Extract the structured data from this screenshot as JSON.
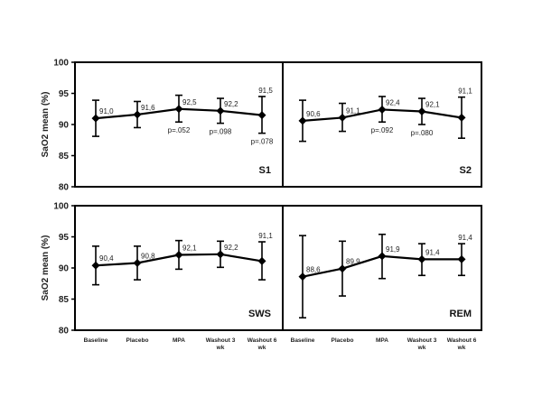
{
  "chart_data": [
    {
      "type": "line",
      "panel": "S1",
      "ylabel": "SaO2 mean (%)",
      "ylim": [
        80,
        100
      ],
      "yticks": [
        80,
        85,
        90,
        95,
        100
      ],
      "categories": [
        "Baseline",
        "Placebo",
        "MPA",
        "Washout 3 wk",
        "Washout 6 wk"
      ],
      "series": [
        {
          "values": [
            91.0,
            91.6,
            92.5,
            92.2,
            91.5
          ],
          "value_labels": [
            "91,0",
            "91,6",
            "92,5",
            "92,2",
            "91,5"
          ],
          "error_low": [
            88.1,
            89.5,
            90.4,
            90.2,
            88.6
          ],
          "error_high": [
            93.9,
            93.7,
            94.7,
            94.2,
            94.5
          ]
        }
      ],
      "annotations": [
        {
          "category": "MPA",
          "text": "p=.052"
        },
        {
          "category": "Washout 3 wk",
          "text": "p=.098"
        },
        {
          "category": "Washout 6 wk",
          "text": "p=.078"
        }
      ]
    },
    {
      "type": "line",
      "panel": "S2",
      "ylim": [
        80,
        100
      ],
      "categories": [
        "Baseline",
        "Placebo",
        "MPA",
        "Washout 3 wk",
        "Washout 6 wk"
      ],
      "series": [
        {
          "values": [
            90.6,
            91.1,
            92.4,
            92.1,
            91.1
          ],
          "value_labels": [
            "90,6",
            "91,1",
            "92,4",
            "92,1",
            "91,1"
          ],
          "error_low": [
            87.3,
            88.9,
            90.4,
            90.0,
            87.8
          ],
          "error_high": [
            93.9,
            93.4,
            94.5,
            94.2,
            94.4
          ]
        }
      ],
      "annotations": [
        {
          "category": "MPA",
          "text": "p=.092"
        },
        {
          "category": "Washout 3 wk",
          "text": "p=.080"
        }
      ]
    },
    {
      "type": "line",
      "panel": "SWS",
      "ylabel": "SaO2 mean (%)",
      "ylim": [
        80,
        100
      ],
      "yticks": [
        80,
        85,
        90,
        95,
        100
      ],
      "categories": [
        "Baseline",
        "Placebo",
        "MPA",
        "Washout 3 wk",
        "Washout 6 wk"
      ],
      "xtick_labels": [
        "Baseline",
        "Placebo",
        "MPA",
        "Washout 3 wk",
        "Washout 6 wk"
      ],
      "series": [
        {
          "values": [
            90.4,
            90.8,
            92.1,
            92.2,
            91.1
          ],
          "value_labels": [
            "90,4",
            "90,8",
            "92,1",
            "92,2",
            "91,1"
          ],
          "error_low": [
            87.3,
            88.1,
            89.8,
            90.1,
            88.1
          ],
          "error_high": [
            93.5,
            93.5,
            94.4,
            94.3,
            94.2
          ]
        }
      ],
      "annotations": []
    },
    {
      "type": "line",
      "panel": "REM",
      "ylim": [
        80,
        100
      ],
      "categories": [
        "Baseline",
        "Placebo",
        "MPA",
        "Washout 3 wk",
        "Washout 6 wk"
      ],
      "xtick_labels": [
        "Baseline",
        "Placebo",
        "MPA",
        "Washout 3 wk",
        "Washout 6 wk"
      ],
      "series": [
        {
          "values": [
            88.6,
            89.9,
            91.9,
            91.4,
            91.4
          ],
          "value_labels": [
            "88,6",
            "89,9",
            "91,9",
            "91,4",
            "91,4"
          ],
          "error_low": [
            82.0,
            85.5,
            88.3,
            88.8,
            88.8
          ],
          "error_high": [
            95.2,
            94.3,
            95.4,
            93.9,
            93.9
          ]
        }
      ],
      "annotations": []
    }
  ]
}
